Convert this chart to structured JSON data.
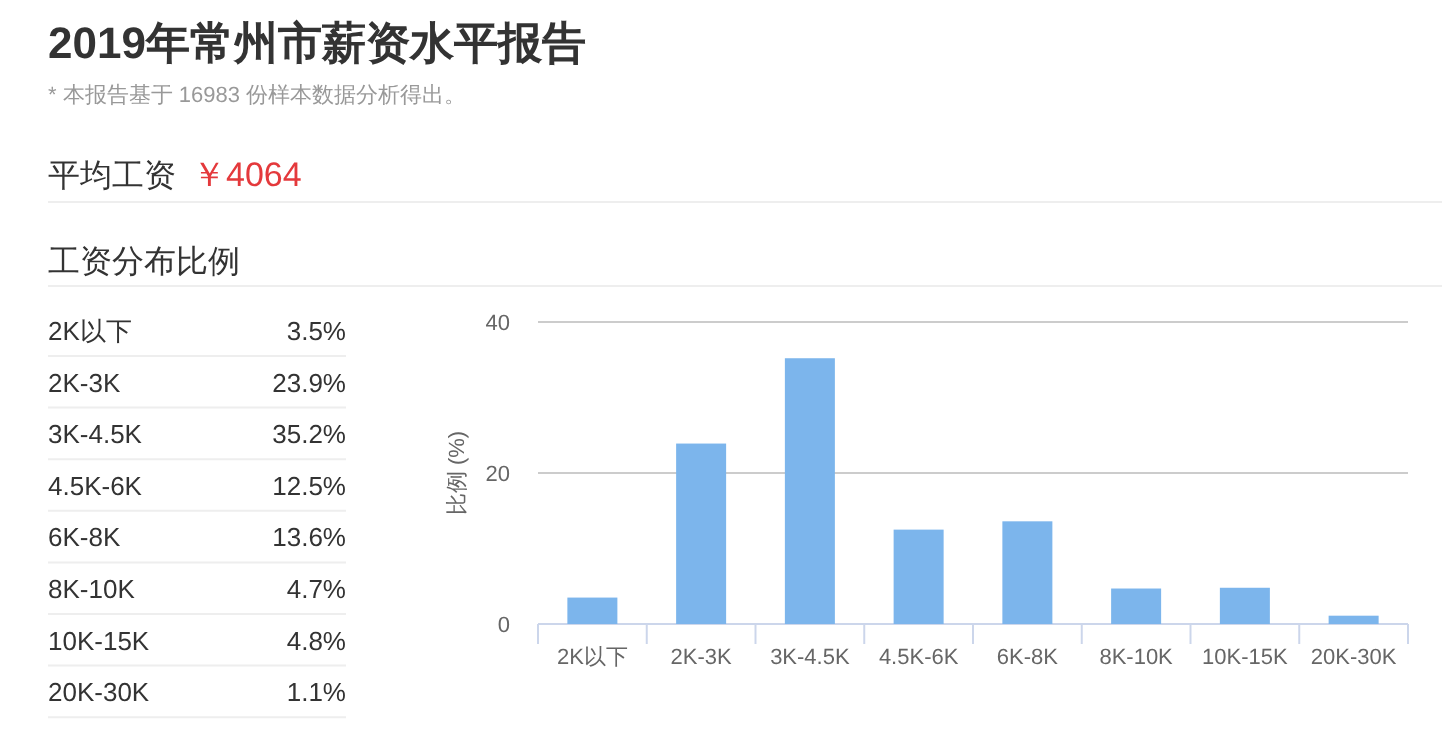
{
  "chart_data": {
    "type": "bar",
    "title": "2019年常州市薪资水平报告",
    "subtitle": "* 本报告基于 16983 份样本数据分析得出。",
    "annotations": [
      "平均工资",
      "￥4064",
      "工资分布比例",
      "3.5%",
      "23.9%",
      "35.2%",
      "12.5%",
      "13.6%",
      "4.7%",
      "4.8%",
      "1.1%"
    ],
    "ylabel": "比例 (%)",
    "categories": [
      "2K以下",
      "2K-3K",
      "3K-4.5K",
      "4.5K-6K",
      "6K-8K",
      "8K-10K",
      "10K-15K",
      "20K-30K"
    ],
    "values": [
      3.5,
      23.9,
      35.2,
      12.5,
      13.6,
      4.7,
      4.8,
      1.1
    ],
    "color": "#7cb5ec",
    "ylim": [
      0,
      40
    ],
    "yticks": [
      0,
      20,
      40
    ],
    "grid": "y"
  }
}
